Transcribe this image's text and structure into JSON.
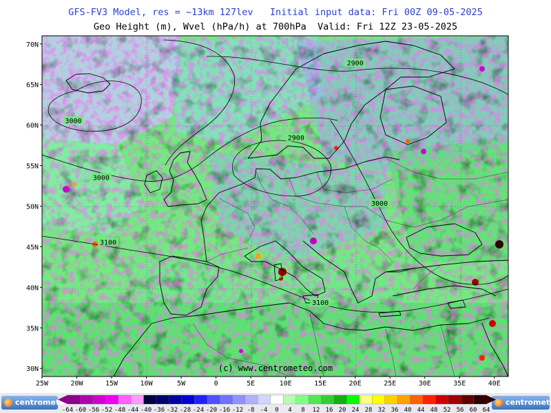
{
  "header": {
    "line1": "GFS-FV3 Model, res = ~13km 127lev   Initial input data: Fri 00Z 09-05-2025",
    "line2": "Geo Height (m), Wvel (hPa/h) at 700hPa  Valid: Fri 12Z 23-05-2025"
  },
  "map": {
    "lat_labels": [
      "70N",
      "65N",
      "60N",
      "55N",
      "50N",
      "45N",
      "40N",
      "35N",
      "30N"
    ],
    "lon_labels": [
      "25W",
      "20W",
      "15W",
      "10W",
      "5W",
      "0",
      "5E",
      "10E",
      "15E",
      "20E",
      "25E",
      "30E",
      "35E",
      "40E"
    ],
    "lat_range": [
      29,
      71
    ],
    "lon_range": [
      -25,
      42
    ],
    "contour_labels": [
      {
        "text": "3000",
        "lon": -20.5,
        "lat": 60.5
      },
      {
        "text": "3000",
        "lon": -16.5,
        "lat": 53.5
      },
      {
        "text": "3100",
        "lon": -15.5,
        "lat": 45.5
      },
      {
        "text": "2900",
        "lon": 20.0,
        "lat": 67.6
      },
      {
        "text": "2900",
        "lon": 11.5,
        "lat": 58.4
      },
      {
        "text": "3000",
        "lon": 23.5,
        "lat": 50.3
      },
      {
        "text": "3100",
        "lon": 15.0,
        "lat": 38.1
      }
    ],
    "watermark": "(c) www.centrometeo.com"
  },
  "legend": {
    "labels": [
      "-64",
      "-60",
      "-56",
      "-52",
      "-48",
      "-44",
      "-40",
      "-36",
      "-32",
      "-28",
      "-24",
      "-20",
      "-16",
      "-12",
      "-8",
      "-4",
      "0",
      "4",
      "8",
      "12",
      "16",
      "20",
      "24",
      "28",
      "32",
      "36",
      "40",
      "44",
      "48",
      "52",
      "56",
      "60",
      "64"
    ],
    "colors": [
      "#8c008c",
      "#b000b0",
      "#d000d0",
      "#f000f0",
      "#ff60ff",
      "#ff99ff",
      "#000040",
      "#000070",
      "#0000a0",
      "#0000d0",
      "#2020ff",
      "#5050ff",
      "#7070ff",
      "#9090ff",
      "#b0b0ff",
      "#d4d4ff",
      "#ffffff",
      "#b4ffb4",
      "#80ff80",
      "#50e850",
      "#30d030",
      "#10b010",
      "#00ff00",
      "#ffff80",
      "#ffff00",
      "#ffd000",
      "#ffa000",
      "#ff6000",
      "#ff2000",
      "#d00000",
      "#a00000",
      "#600000",
      "#300000"
    ],
    "logo_text": "centrometeo"
  },
  "colors": {
    "title_blue": "#2a3fd0",
    "land_base": "#5fe86a",
    "sea_base": "#6fe88f",
    "descent_blue": "#3030e0",
    "lavender": "#c4c4ff"
  }
}
